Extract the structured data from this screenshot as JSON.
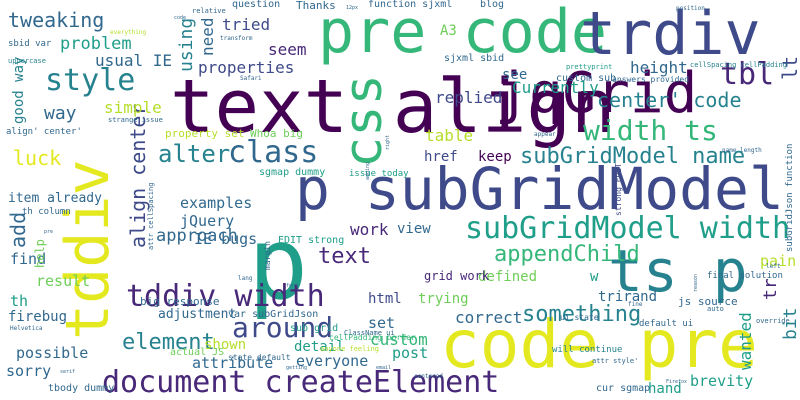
{
  "words": {
    "text_align": "text align",
    "pre_code_top": "pre code",
    "trdiv": "trdiv",
    "p_subgridmodel": "p subGridModel",
    "code_pre": "code pre",
    "tddiv_vertical": "tddiv",
    "ts_p": "ts p",
    "p_big": "p",
    "jqgrid": "jqGrid",
    "css": "css",
    "document_createelement": "document createElement",
    "subgridmodel_width": "subGridModel width",
    "tddiv_width": "tddiv width",
    "width_ts": "width ts",
    "subgridmodel_name": "subGridModel name",
    "style": "style",
    "tbl": "tbl",
    "class": "class",
    "around": "around",
    "center_code": "center' code",
    "alter": "alter",
    "text_mid": "text",
    "element": "element",
    "something": "something",
    "appendchild": "appendChild",
    "tweaking": "tweaking",
    "problem": "problem",
    "luck": "luck",
    "using": "using",
    "need": "need",
    "align_center": "align center",
    "add": "add",
    "lt": "lt",
    "tr": "tr",
    "bit": "bit",
    "wanted": "wanted",
    "pain": "pain",
    "currently": "Currently",
    "replied": "replied",
    "height": "height",
    "properties": "properties",
    "seem": "seem",
    "tried": "tried",
    "usual_ie": "usual IE",
    "good_way": "good way",
    "way": "way",
    "simple": "simple",
    "item_already": "item already",
    "th_column": "th column",
    "table": "table",
    "keep": "keep",
    "href": "href",
    "examples": "examples",
    "jquery": "jQuery",
    "ie_bugs": "IE bugs",
    "approach": "approach",
    "work": "work",
    "view": "view",
    "defined": "defined",
    "trying": "trying",
    "trirand": "trirand",
    "correct": "correct",
    "custom": "custom",
    "set": "set",
    "html": "html",
    "detail": "detail",
    "everyone": "everyone",
    "post": "post",
    "shown": "shown",
    "attribute": "attribute",
    "firebug": "firebug",
    "result": "result",
    "find": "find",
    "th": "th",
    "possible": "possible",
    "sorry": "sorry",
    "brevity": "brevity",
    "hand": "hand",
    "adjustment": "adjustment",
    "grid_work": "grid work",
    "a3": "A3",
    "see": "see",
    "w": "w",
    "help": "help",
    "edit_strong": "EDIT strong",
    "property_set": "property set",
    "whoa_big": "Whoa big",
    "sgmap_dummy": "sgmap dummy",
    "issue_today": "issue today",
    "big_response": "big response",
    "var_subgridjson": "var subGridJson",
    "sub_grid": "sub grid",
    "tbody_dummy": "tbody dummy",
    "actual_js": "actual JS",
    "state_default": "state default",
    "cellpadding_border": "cellPadding border",
    "anyone_feeling": "anyone feeling",
    "will_continue": "will continue",
    "cur_sgmap": "cur sgmap",
    "js_source": "js source",
    "final_solution": "final solution",
    "default_ui": "default ui",
    "ui_state": "ui state",
    "custom_sub": "custom sub",
    "answers_provided": "answers provided",
    "prettyprint": "prettyprint",
    "sbid_var": "sbid var",
    "everything": "everything",
    "uppercase": "uppercase",
    "strange_issue": "strange issue",
    "align_center_q": "align' center'",
    "relative": "relative",
    "question": "question",
    "thanks": "Thanks",
    "function_sjxml": "function sjxml",
    "blog": "blog",
    "sjxml_sbid": "sjxml sbid",
    "cellspacing_cellpadding": "cellSpacing cellPadding",
    "subgridjson_function": "subGridJson function",
    "name_length": "name length",
    "position": "position",
    "safari": "Safari",
    "transform": "transform",
    "attr_cellspacing": "attr cellSpacing",
    "margin": "margin",
    "lang": "lang",
    "font": "font",
    "classname_ui": "ClassName ui",
    "centered": "centered",
    "firefox": "Firefox",
    "strong_edit": "strong EDIT",
    "auto": "auto",
    "override": "override",
    "fine": "fine",
    "left": "left",
    "reason": "reason",
    "attr_style": "attr style'",
    "appear": "appear",
    "right": "right",
    "helvetica": "Helvetica",
    "serif": "serif",
    "pre_small": "pre",
    "code_small": "code",
    "px12": "12px",
    "getting": "getting",
    "email": "email",
    "adding": "adding"
  }
}
